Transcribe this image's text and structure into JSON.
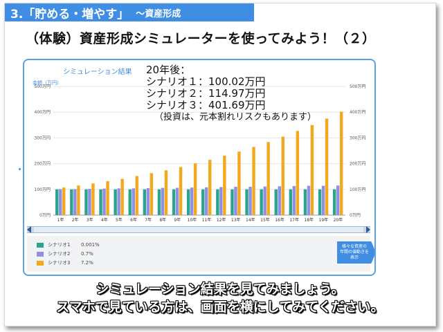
{
  "section": {
    "main": "3.「貯める・増やす」",
    "sub": "～資産形成"
  },
  "slide_title": "（体験）資産形成シミュレーターを使ってみよう！（２）",
  "panel": {
    "title": "シミュレーション結果",
    "y_unit": "金額（万円）",
    "display_button": "様々な資産の\n年間の値動きを\n表示"
  },
  "overlay": {
    "heading": "20年後：",
    "lines": [
      "シナリオ１：100.02万円",
      "シナリオ２：114.97万円",
      "シナリオ３：401.69万円"
    ],
    "note": "（投資は、元本割れリスクもあります）"
  },
  "legend": [
    {
      "name": "シナリオ1",
      "rate": "0.001%",
      "color": "#2aa58c"
    },
    {
      "name": "シナリオ2",
      "rate": "0.7%",
      "color": "#8f8fe6"
    },
    {
      "name": "シナリオ3",
      "rate": "7.2%",
      "color": "#f2a91b"
    }
  ],
  "captions": [
    "シミュレーション結果を見てみましょう。",
    "スマホで見ている方は、画面を横にしてみてください。"
  ],
  "chart_data": {
    "type": "bar",
    "categories": [
      "1年",
      "2年",
      "3年",
      "4年",
      "5年",
      "6年",
      "7年",
      "8年",
      "9年",
      "10年",
      "11年",
      "12年",
      "13年",
      "14年",
      "15年",
      "16年",
      "17年",
      "18年",
      "19年",
      "20年"
    ],
    "series": [
      {
        "name": "シナリオ1",
        "color": "#2aa58c",
        "values": [
          100,
          100,
          100,
          100,
          100,
          100,
          100,
          100,
          100,
          100,
          100,
          100,
          100,
          100,
          100,
          100,
          100,
          100,
          100,
          100.02
        ]
      },
      {
        "name": "シナリオ2",
        "color": "#8f8fe6",
        "values": [
          101,
          101,
          102,
          103,
          104,
          104,
          105,
          106,
          106,
          107,
          108,
          109,
          110,
          110,
          111,
          112,
          113,
          114,
          114,
          114.97
        ]
      },
      {
        "name": "シナリオ3",
        "color": "#f2a91b",
        "values": [
          107,
          115,
          123,
          132,
          141,
          152,
          163,
          174,
          187,
          201,
          215,
          231,
          247,
          265,
          284,
          305,
          327,
          350,
          375,
          401.69
        ]
      }
    ],
    "y_ticks": [
      "0万円",
      "100万円",
      "200万円",
      "300万円",
      "400万円",
      "500万円"
    ],
    "ylim": [
      0,
      500
    ],
    "grid": true
  }
}
